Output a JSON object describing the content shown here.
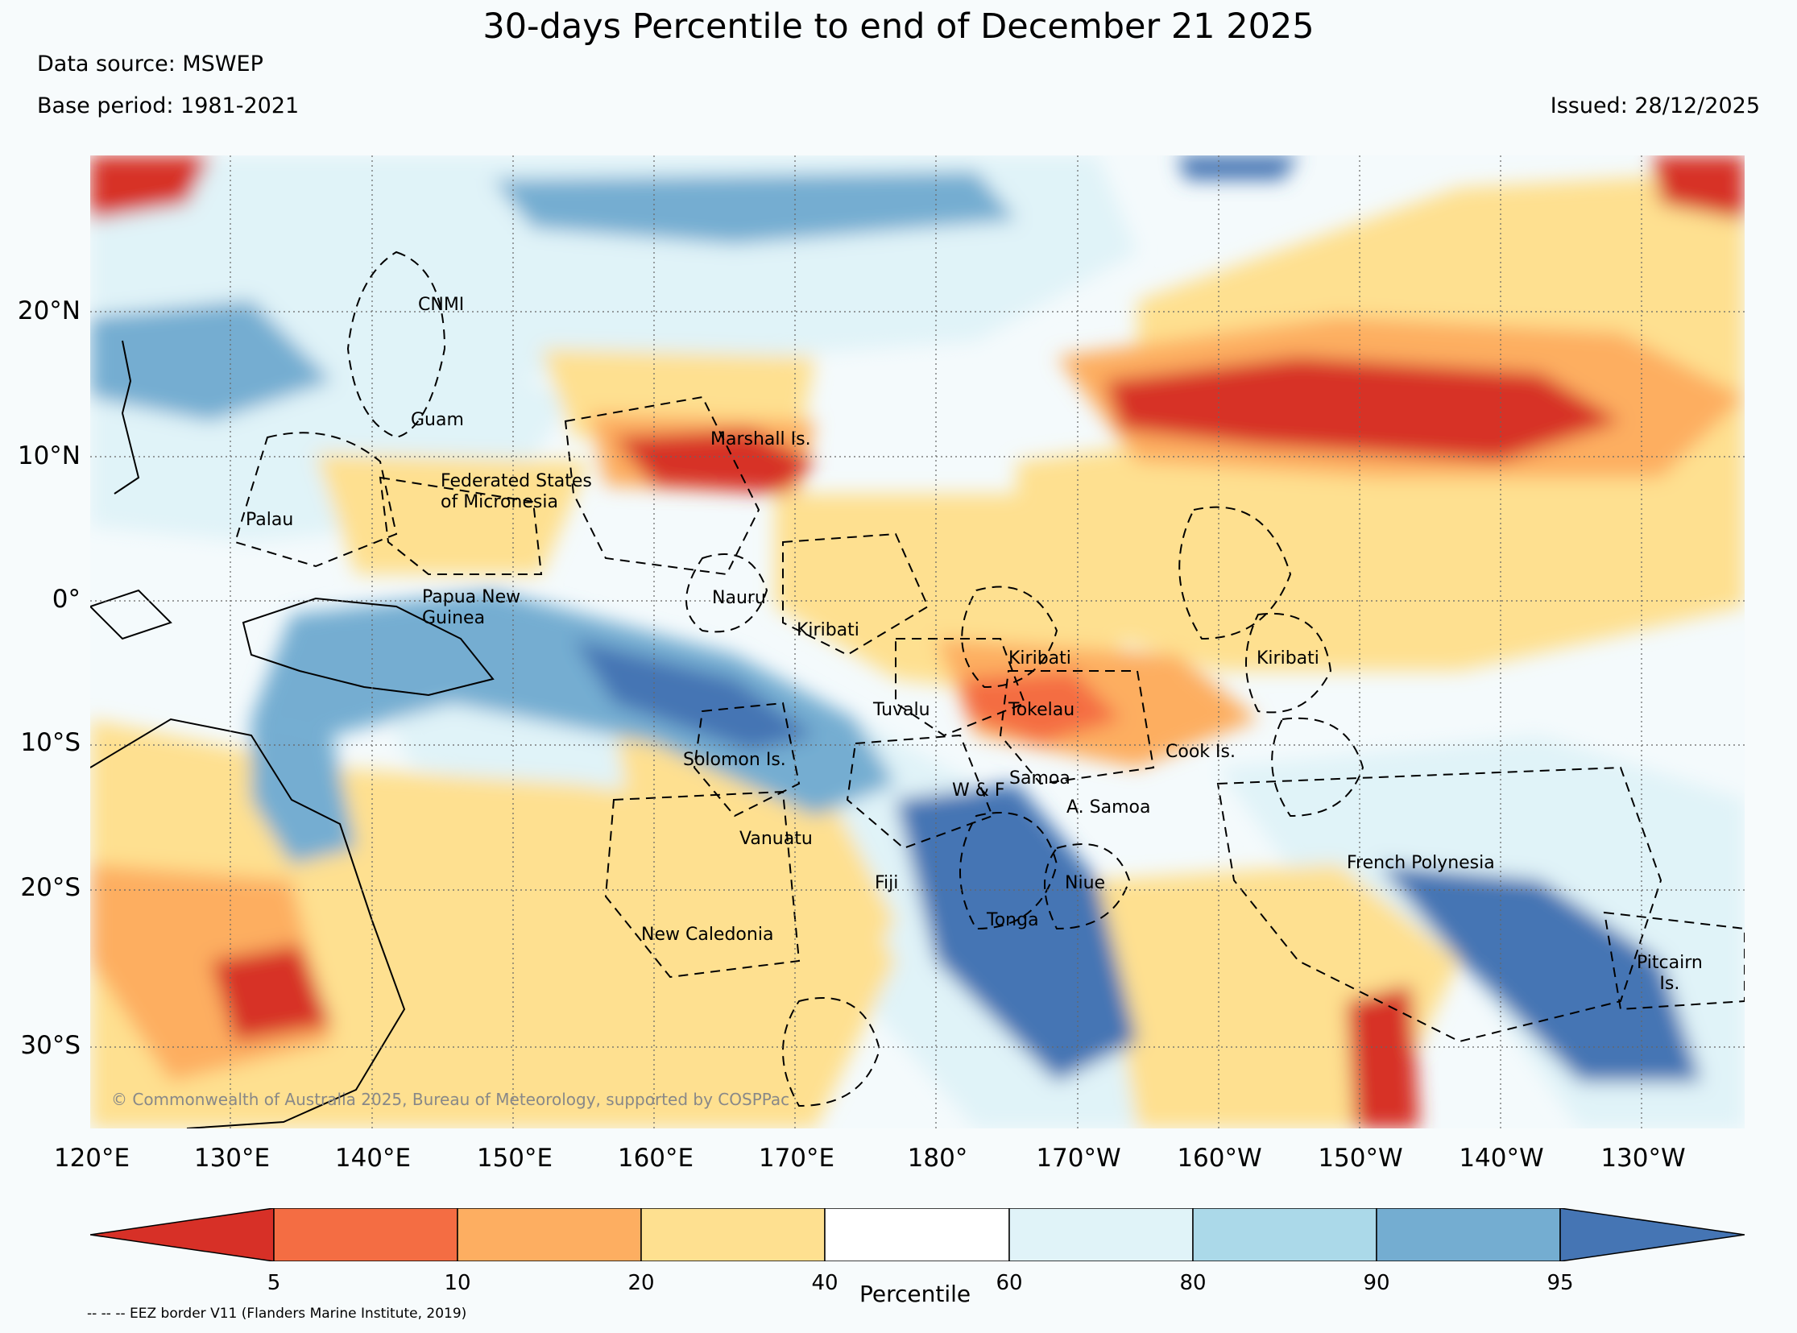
{
  "title": "30-days Percentile to end of December 21 2025",
  "data_source": "Data source: MSWEP",
  "base_period": "Base period: 1981-2021",
  "issued": "Issued: 28/12/2025",
  "lat_labels": [
    "20°N",
    "10°N",
    "0°",
    "10°S",
    "20°S",
    "30°S"
  ],
  "lon_labels": [
    "120°E",
    "130°E",
    "140°E",
    "150°E",
    "160°E",
    "170°E",
    "180°",
    "170°W",
    "160°W",
    "150°W",
    "140°W",
    "130°W"
  ],
  "regions": {
    "cnmi": "CNMI",
    "guam": "Guam",
    "marshall": "Marshall Is.",
    "fsm": "Federated States\nof Micronesia",
    "palau": "Palau",
    "png": "Papua New\nGuinea",
    "nauru": "Nauru",
    "kiribati_w": "Kiribati",
    "kiribati_c": "Kiribati",
    "kiribati_e": "Kiribati",
    "tuvalu": "Tuvalu",
    "tokelau": "Tokelau",
    "solomon": "Solomon Is.",
    "cook": "Cook Is.",
    "wf": "W & F",
    "samoa": "Samoa",
    "asamoa": "A. Samoa",
    "vanuatu": "Vanuatu",
    "fiji": "Fiji",
    "niue": "Niue",
    "tonga": "Tonga",
    "french_polynesia": "French Polynesia",
    "new_caledonia": "New Caledonia",
    "pitcairn": "Pitcairn\nIs."
  },
  "credit": "© Commonwealth of Australia 2025, Bureau of Meteorology, supported by COSPPac",
  "legend": {
    "title": "Percentile",
    "ticks": [
      "5",
      "10",
      "20",
      "40",
      "60",
      "80",
      "90",
      "95"
    ],
    "colors": [
      "#d73027",
      "#f46d43",
      "#fdae61",
      "#fee090",
      "#ffffff",
      "#e0f3f8",
      "#abd9e9",
      "#74add1",
      "#4575b4"
    ]
  },
  "footnote": "-- -- -- EEZ border V11 (Flanders Marine Institute, 2019)"
}
